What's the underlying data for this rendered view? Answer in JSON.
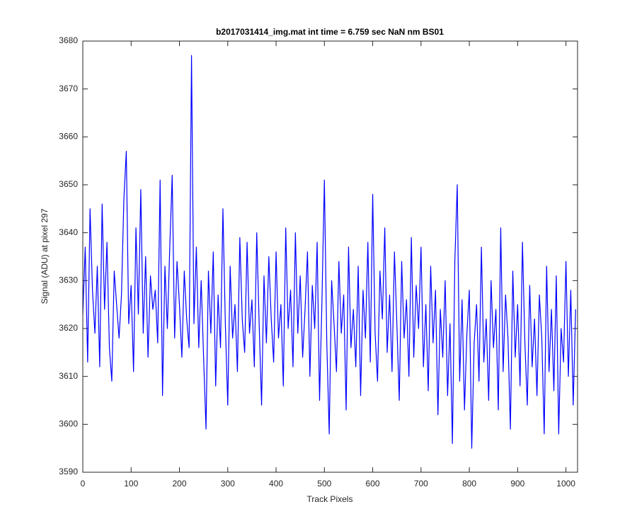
{
  "chart_data": {
    "type": "line",
    "title": "b2017031414_img.mat int time = 6.759 sec  NaN nm BS01",
    "x_label": "Track Pixels",
    "y_label": "Signal (ADU) at pixel 297",
    "color": "#0000ff",
    "xlim": [
      0,
      1024
    ],
    "ylim": [
      3590,
      3680
    ],
    "xticks": [
      0,
      100,
      200,
      300,
      400,
      500,
      600,
      700,
      800,
      900,
      1000
    ],
    "yticks": [
      3590,
      3600,
      3610,
      3620,
      3630,
      3640,
      3650,
      3660,
      3670,
      3680
    ],
    "grid": false,
    "x": [
      0,
      5,
      10,
      15,
      20,
      25,
      30,
      35,
      40,
      45,
      50,
      55,
      60,
      65,
      70,
      75,
      80,
      85,
      90,
      95,
      100,
      105,
      110,
      115,
      120,
      125,
      130,
      135,
      140,
      145,
      150,
      155,
      160,
      165,
      170,
      175,
      180,
      185,
      190,
      195,
      200,
      205,
      210,
      215,
      220,
      225,
      230,
      235,
      240,
      245,
      250,
      255,
      260,
      265,
      270,
      275,
      280,
      285,
      290,
      295,
      300,
      305,
      310,
      315,
      320,
      325,
      330,
      335,
      340,
      345,
      350,
      355,
      360,
      365,
      370,
      375,
      380,
      385,
      390,
      395,
      400,
      405,
      410,
      415,
      420,
      425,
      430,
      435,
      440,
      445,
      450,
      455,
      460,
      465,
      470,
      475,
      480,
      485,
      490,
      495,
      500,
      505,
      510,
      515,
      520,
      525,
      530,
      535,
      540,
      545,
      550,
      555,
      560,
      565,
      570,
      575,
      580,
      585,
      590,
      595,
      600,
      605,
      610,
      615,
      620,
      625,
      630,
      635,
      640,
      645,
      650,
      655,
      660,
      665,
      670,
      675,
      680,
      685,
      690,
      695,
      700,
      705,
      710,
      715,
      720,
      725,
      730,
      735,
      740,
      745,
      750,
      755,
      760,
      765,
      770,
      775,
      780,
      785,
      790,
      795,
      800,
      805,
      810,
      815,
      820,
      825,
      830,
      835,
      840,
      845,
      850,
      855,
      860,
      865,
      870,
      875,
      880,
      885,
      890,
      895,
      900,
      905,
      910,
      915,
      920,
      925,
      930,
      935,
      940,
      945,
      950,
      955,
      960,
      965,
      970,
      975,
      980,
      985,
      990,
      995,
      1000,
      1005,
      1010,
      1015,
      1020
    ],
    "values": [
      3623,
      3637,
      3613,
      3645,
      3628,
      3619,
      3633,
      3612,
      3646,
      3624,
      3638,
      3616,
      3609,
      3632,
      3625,
      3618,
      3627,
      3647,
      3657,
      3621,
      3629,
      3611,
      3641,
      3623,
      3649,
      3619,
      3635,
      3614,
      3631,
      3624,
      3628,
      3617,
      3651,
      3606,
      3633,
      3620,
      3637,
      3652,
      3618,
      3634,
      3625,
      3614,
      3632,
      3622,
      3616,
      3677,
      3621,
      3637,
      3616,
      3630,
      3614,
      3599,
      3632,
      3619,
      3636,
      3608,
      3627,
      3616,
      3645,
      3621,
      3604,
      3633,
      3618,
      3625,
      3611,
      3639,
      3622,
      3615,
      3638,
      3619,
      3626,
      3612,
      3640,
      3621,
      3604,
      3631,
      3617,
      3635,
      3622,
      3613,
      3636,
      3618,
      3625,
      3608,
      3641,
      3620,
      3628,
      3612,
      3640,
      3619,
      3631,
      3614,
      3624,
      3636,
      3610,
      3629,
      3620,
      3638,
      3605,
      3626,
      3651,
      3617,
      3598,
      3630,
      3621,
      3611,
      3634,
      3619,
      3627,
      3603,
      3637,
      3616,
      3624,
      3612,
      3633,
      3606,
      3628,
      3618,
      3638,
      3613,
      3648,
      3619,
      3609,
      3632,
      3622,
      3641,
      3615,
      3627,
      3611,
      3636,
      3621,
      3605,
      3634,
      3618,
      3626,
      3610,
      3639,
      3614,
      3629,
      3620,
      3637,
      3612,
      3625,
      3607,
      3633,
      3617,
      3628,
      3602,
      3624,
      3614,
      3630,
      3606,
      3621,
      3596,
      3634,
      3650,
      3609,
      3626,
      3603,
      3619,
      3628,
      3595,
      3617,
      3625,
      3609,
      3637,
      3613,
      3622,
      3605,
      3630,
      3616,
      3624,
      3603,
      3641,
      3611,
      3627,
      3618,
      3599,
      3632,
      3614,
      3625,
      3608,
      3638,
      3617,
      3604,
      3629,
      3612,
      3622,
      3606,
      3627,
      3618,
      3598,
      3633,
      3611,
      3624,
      3607,
      3631,
      3598,
      3620,
      3613,
      3634,
      3610,
      3628,
      3604,
      3624
    ]
  }
}
